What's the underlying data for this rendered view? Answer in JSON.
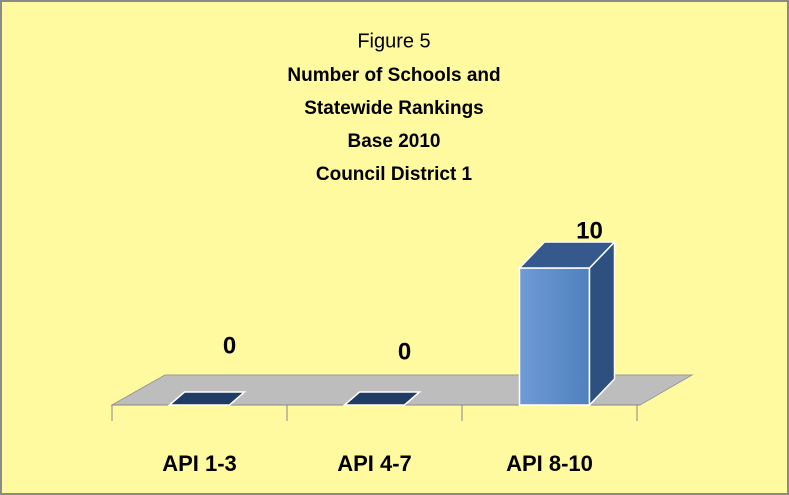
{
  "chart_data": {
    "type": "bar3d",
    "title": "Figure 5",
    "subtitle": [
      "Number of Schools and",
      "Statewide Rankings",
      "Base 2010",
      "Council District 1"
    ],
    "categories": [
      "API 1-3",
      "API 4-7",
      "API 8-10"
    ],
    "values": [
      0,
      0,
      10
    ],
    "color": "#4f81bd"
  }
}
